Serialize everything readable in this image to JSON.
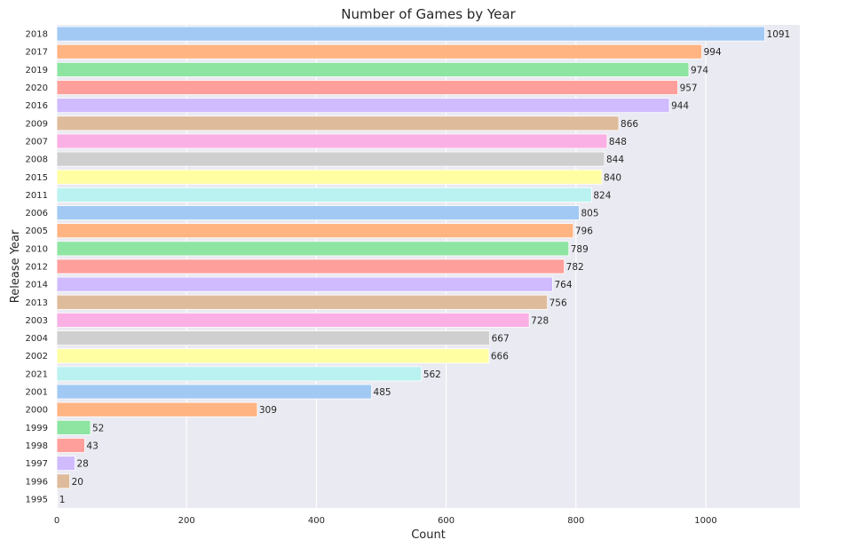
{
  "chart_data": {
    "type": "bar",
    "orientation": "horizontal",
    "title": "Number of Games by Year",
    "xlabel": "Count",
    "ylabel": "Release Year",
    "xlim": [
      0,
      1145
    ],
    "xticks": [
      0,
      200,
      400,
      600,
      800,
      1000
    ],
    "grid": true,
    "categories": [
      "2018",
      "2017",
      "2019",
      "2020",
      "2016",
      "2009",
      "2007",
      "2008",
      "2015",
      "2011",
      "2006",
      "2005",
      "2010",
      "2012",
      "2014",
      "2013",
      "2003",
      "2004",
      "2002",
      "2021",
      "2001",
      "2000",
      "1999",
      "1998",
      "1997",
      "1996",
      "1995"
    ],
    "values": [
      1091,
      994,
      974,
      957,
      944,
      866,
      848,
      844,
      840,
      824,
      805,
      796,
      789,
      782,
      764,
      756,
      728,
      667,
      666,
      562,
      485,
      309,
      52,
      43,
      28,
      20,
      1
    ],
    "data_labels": [
      "1091",
      "994",
      "974",
      "957",
      "944",
      "866",
      "848",
      "844",
      "840",
      "824",
      "805",
      "796",
      "789",
      "782",
      "764",
      "756",
      "728",
      "667",
      "666",
      "562",
      "485",
      "309",
      "52",
      "43",
      "28",
      "20",
      "1"
    ],
    "palette": [
      "#a1c9f4",
      "#ffb482",
      "#8de5a1",
      "#ff9f9b",
      "#d0bbff",
      "#debb9b",
      "#fab0e4",
      "#cfcfcf",
      "#fffea3",
      "#b9f2f0"
    ],
    "background": "#eaeaf2"
  }
}
